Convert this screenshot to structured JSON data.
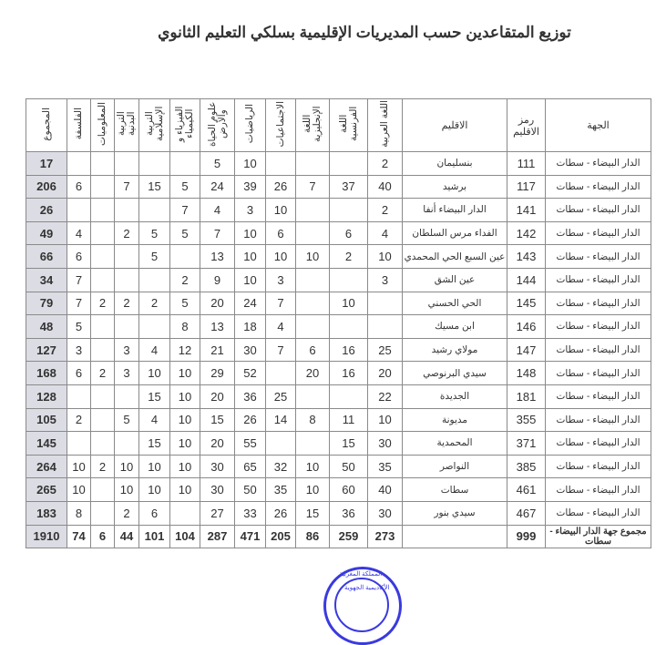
{
  "title": "توزيع المتقاعدين حسب المديريات الإقليمية بسلكي التعليم الثانوي",
  "columns": {
    "region": "الجهة",
    "code": "رمز الاقليم",
    "province": "الاقليم",
    "arabic": "اللغة العربية",
    "french": "اللغة الفرنسية",
    "english": "اللغة الإنجليزية",
    "social": "الاجتماعيات",
    "math": "الرياضيات",
    "svt": "علوم الحياة والأرض",
    "physics": "الفيزياء و الكيمياء",
    "islamic": "التربية الإسلامية",
    "pe": "التربية البدنية",
    "info": "المعلوميات",
    "philosophy": "الفلسفة",
    "total": "المجموع"
  },
  "rows": [
    {
      "region": "الدار البيضاء - سطات",
      "code": "111",
      "province": "بنسليمان",
      "arabic": "2",
      "french": "",
      "english": "",
      "social": "",
      "math": "10",
      "svt": "5",
      "physics": "",
      "islamic": "",
      "pe": "",
      "info": "",
      "philosophy": "",
      "total": "17"
    },
    {
      "region": "الدار البيضاء - سطات",
      "code": "117",
      "province": "برشيد",
      "arabic": "40",
      "french": "37",
      "english": "7",
      "social": "26",
      "math": "39",
      "svt": "24",
      "physics": "5",
      "islamic": "15",
      "pe": "7",
      "info": "",
      "philosophy": "6",
      "total": "206"
    },
    {
      "region": "الدار البيضاء - سطات",
      "code": "141",
      "province": "الدار البيضاء أنفا",
      "arabic": "2",
      "french": "",
      "english": "",
      "social": "10",
      "math": "3",
      "svt": "4",
      "physics": "7",
      "islamic": "",
      "pe": "",
      "info": "",
      "philosophy": "",
      "total": "26"
    },
    {
      "region": "الدار البيضاء - سطات",
      "code": "142",
      "province": "الفداء مرس السلطان",
      "arabic": "4",
      "french": "6",
      "english": "",
      "social": "6",
      "math": "10",
      "svt": "7",
      "physics": "5",
      "islamic": "5",
      "pe": "2",
      "info": "",
      "philosophy": "4",
      "total": "49"
    },
    {
      "region": "الدار البيضاء - سطات",
      "code": "143",
      "province": "عين السبع الحي المحمدي",
      "arabic": "10",
      "french": "2",
      "english": "10",
      "social": "10",
      "math": "10",
      "svt": "13",
      "physics": "",
      "islamic": "5",
      "pe": "",
      "info": "",
      "philosophy": "6",
      "total": "66"
    },
    {
      "region": "الدار البيضاء - سطات",
      "code": "144",
      "province": "عين الشق",
      "arabic": "3",
      "french": "",
      "english": "",
      "social": "3",
      "math": "10",
      "svt": "9",
      "physics": "2",
      "islamic": "",
      "pe": "",
      "info": "",
      "philosophy": "7",
      "total": "34"
    },
    {
      "region": "الدار البيضاء - سطات",
      "code": "145",
      "province": "الحي الحسني",
      "arabic": "",
      "french": "10",
      "english": "",
      "social": "7",
      "math": "24",
      "svt": "20",
      "physics": "5",
      "islamic": "2",
      "pe": "2",
      "info": "2",
      "philosophy": "7",
      "total": "79"
    },
    {
      "region": "الدار البيضاء - سطات",
      "code": "146",
      "province": "ابن مسيك",
      "arabic": "",
      "french": "",
      "english": "",
      "social": "4",
      "math": "18",
      "svt": "13",
      "physics": "8",
      "islamic": "",
      "pe": "",
      "info": "",
      "philosophy": "5",
      "total": "48"
    },
    {
      "region": "الدار البيضاء - سطات",
      "code": "147",
      "province": "مولاي رشيد",
      "arabic": "25",
      "french": "16",
      "english": "6",
      "social": "7",
      "math": "30",
      "svt": "21",
      "physics": "12",
      "islamic": "4",
      "pe": "3",
      "info": "",
      "philosophy": "3",
      "total": "127"
    },
    {
      "region": "الدار البيضاء - سطات",
      "code": "148",
      "province": "سيدي البرنوصي",
      "arabic": "20",
      "french": "16",
      "english": "20",
      "social": "",
      "math": "52",
      "svt": "29",
      "physics": "10",
      "islamic": "10",
      "pe": "3",
      "info": "2",
      "philosophy": "6",
      "total": "168"
    },
    {
      "region": "الدار البيضاء - سطات",
      "code": "181",
      "province": "الجديدة",
      "arabic": "22",
      "french": "",
      "english": "",
      "social": "25",
      "math": "36",
      "svt": "20",
      "physics": "10",
      "islamic": "15",
      "pe": "",
      "info": "",
      "philosophy": "",
      "total": "128"
    },
    {
      "region": "الدار البيضاء - سطات",
      "code": "355",
      "province": "مديونة",
      "arabic": "10",
      "french": "11",
      "english": "8",
      "social": "14",
      "math": "26",
      "svt": "15",
      "physics": "10",
      "islamic": "4",
      "pe": "5",
      "info": "",
      "philosophy": "2",
      "total": "105"
    },
    {
      "region": "الدار البيضاء - سطات",
      "code": "371",
      "province": "المحمدية",
      "arabic": "30",
      "french": "15",
      "english": "",
      "social": "",
      "math": "55",
      "svt": "20",
      "physics": "10",
      "islamic": "15",
      "pe": "",
      "info": "",
      "philosophy": "",
      "total": "145"
    },
    {
      "region": "الدار البيضاء - سطات",
      "code": "385",
      "province": "النواصر",
      "arabic": "35",
      "french": "50",
      "english": "10",
      "social": "32",
      "math": "65",
      "svt": "30",
      "physics": "10",
      "islamic": "10",
      "pe": "10",
      "info": "2",
      "philosophy": "10",
      "total": "264"
    },
    {
      "region": "الدار البيضاء - سطات",
      "code": "461",
      "province": "سطات",
      "arabic": "40",
      "french": "60",
      "english": "10",
      "social": "35",
      "math": "50",
      "svt": "30",
      "physics": "10",
      "islamic": "10",
      "pe": "10",
      "info": "",
      "philosophy": "10",
      "total": "265"
    },
    {
      "region": "الدار البيضاء - سطات",
      "code": "467",
      "province": "سيدي بنور",
      "arabic": "30",
      "french": "36",
      "english": "15",
      "social": "26",
      "math": "33",
      "svt": "27",
      "physics": "",
      "islamic": "6",
      "pe": "2",
      "info": "",
      "philosophy": "8",
      "total": "183"
    }
  ],
  "summary": {
    "region": "مجموع جهة الدار البيضاء - سطات",
    "code": "999",
    "province": "",
    "arabic": "273",
    "french": "259",
    "english": "86",
    "social": "205",
    "math": "471",
    "svt": "287",
    "physics": "104",
    "islamic": "101",
    "pe": "44",
    "info": "6",
    "philosophy": "74",
    "total": "1910"
  },
  "stamp": {
    "text": "المملكة المغربية - الأكاديمية الجهوية للتربية والتكوين لجهة الدار البيضاء سطات",
    "color": "#3a3ae0"
  },
  "colors": {
    "total_column_bg": "#dcdce4",
    "border": "#8a8a8a"
  }
}
